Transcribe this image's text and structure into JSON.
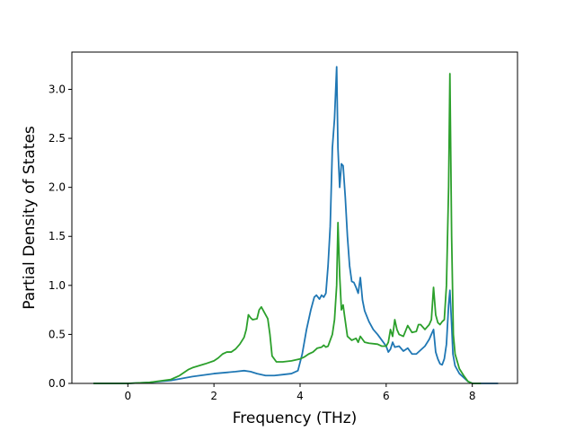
{
  "chart_data": {
    "type": "line",
    "title": "",
    "xlabel": "Frequency (THz)",
    "ylabel": "Partial Density of States",
    "xlim": [
      -1.3,
      9.05
    ],
    "ylim": [
      0,
      3.38
    ],
    "xticks": [
      0,
      2,
      4,
      6,
      8
    ],
    "xtick_labels": [
      "0",
      "2",
      "4",
      "6",
      "8"
    ],
    "yticks": [
      0,
      0.5,
      1,
      1.5,
      2,
      2.5,
      3
    ],
    "ytick_labels": [
      "0.0",
      "0.5",
      "1.0",
      "1.5",
      "2.0",
      "2.5",
      "3.0"
    ],
    "grid": false,
    "legend": false,
    "series": [
      {
        "color": "#1f77b4",
        "x": [
          -0.8,
          0.0,
          0.5,
          1.0,
          1.5,
          2.0,
          2.5,
          2.7,
          2.85,
          3.0,
          3.2,
          3.4,
          3.6,
          3.8,
          3.95,
          4.05,
          4.15,
          4.25,
          4.33,
          4.38,
          4.45,
          4.5,
          4.55,
          4.6,
          4.65,
          4.7,
          4.75,
          4.8,
          4.85,
          4.88,
          4.92,
          4.96,
          5.0,
          5.05,
          5.1,
          5.15,
          5.2,
          5.25,
          5.3,
          5.35,
          5.4,
          5.45,
          5.5,
          5.6,
          5.7,
          5.8,
          5.9,
          6.0,
          6.05,
          6.1,
          6.15,
          6.2,
          6.3,
          6.4,
          6.5,
          6.6,
          6.7,
          6.8,
          6.9,
          7.0,
          7.05,
          7.1,
          7.15,
          7.2,
          7.25,
          7.3,
          7.35,
          7.4,
          7.45,
          7.48,
          7.52,
          7.55,
          7.6,
          7.7,
          7.8,
          7.9,
          8.0,
          8.3,
          8.6
        ],
        "y": [
          0.0,
          0.0,
          0.01,
          0.03,
          0.07,
          0.1,
          0.12,
          0.13,
          0.12,
          0.1,
          0.08,
          0.08,
          0.09,
          0.1,
          0.13,
          0.3,
          0.55,
          0.75,
          0.88,
          0.9,
          0.86,
          0.9,
          0.88,
          0.92,
          1.2,
          1.6,
          2.4,
          2.7,
          3.23,
          2.4,
          2.0,
          2.24,
          2.22,
          1.9,
          1.5,
          1.2,
          1.04,
          1.03,
          0.98,
          0.92,
          1.08,
          0.85,
          0.74,
          0.63,
          0.55,
          0.5,
          0.44,
          0.38,
          0.32,
          0.35,
          0.42,
          0.37,
          0.38,
          0.33,
          0.36,
          0.3,
          0.3,
          0.34,
          0.38,
          0.45,
          0.5,
          0.55,
          0.32,
          0.25,
          0.2,
          0.19,
          0.25,
          0.4,
          0.8,
          0.95,
          0.6,
          0.3,
          0.18,
          0.1,
          0.06,
          0.02,
          0.0,
          0.0,
          0.0
        ]
      },
      {
        "color": "#2ca02c",
        "x": [
          -0.8,
          0.0,
          0.5,
          1.0,
          1.2,
          1.4,
          1.5,
          1.8,
          2.0,
          2.1,
          2.2,
          2.3,
          2.4,
          2.5,
          2.6,
          2.7,
          2.75,
          2.8,
          2.85,
          2.9,
          3.0,
          3.05,
          3.1,
          3.2,
          3.25,
          3.3,
          3.35,
          3.45,
          3.6,
          3.8,
          4.0,
          4.1,
          4.2,
          4.3,
          4.4,
          4.5,
          4.55,
          4.6,
          4.65,
          4.75,
          4.8,
          4.85,
          4.88,
          4.92,
          4.96,
          5.0,
          5.03,
          5.1,
          5.2,
          5.3,
          5.35,
          5.4,
          5.5,
          5.6,
          5.8,
          5.9,
          6.0,
          6.05,
          6.1,
          6.15,
          6.2,
          6.25,
          6.3,
          6.4,
          6.5,
          6.6,
          6.7,
          6.75,
          6.8,
          6.9,
          7.0,
          7.05,
          7.1,
          7.15,
          7.2,
          7.25,
          7.3,
          7.35,
          7.4,
          7.45,
          7.48,
          7.52,
          7.56,
          7.6,
          7.7,
          7.8,
          7.9,
          8.0,
          8.2
        ],
        "y": [
          0.0,
          0.0,
          0.01,
          0.04,
          0.08,
          0.14,
          0.16,
          0.2,
          0.23,
          0.26,
          0.3,
          0.32,
          0.32,
          0.35,
          0.4,
          0.47,
          0.55,
          0.7,
          0.67,
          0.65,
          0.66,
          0.75,
          0.78,
          0.7,
          0.66,
          0.5,
          0.28,
          0.22,
          0.22,
          0.23,
          0.25,
          0.27,
          0.3,
          0.32,
          0.36,
          0.37,
          0.39,
          0.37,
          0.38,
          0.5,
          0.65,
          1.0,
          1.64,
          1.1,
          0.75,
          0.8,
          0.7,
          0.48,
          0.44,
          0.46,
          0.42,
          0.48,
          0.42,
          0.41,
          0.4,
          0.38,
          0.38,
          0.42,
          0.55,
          0.48,
          0.65,
          0.55,
          0.5,
          0.48,
          0.59,
          0.52,
          0.53,
          0.6,
          0.6,
          0.55,
          0.6,
          0.65,
          0.98,
          0.7,
          0.62,
          0.6,
          0.63,
          0.65,
          1.0,
          2.0,
          3.16,
          1.5,
          0.5,
          0.3,
          0.15,
          0.08,
          0.02,
          0.0,
          0.0
        ]
      }
    ]
  }
}
